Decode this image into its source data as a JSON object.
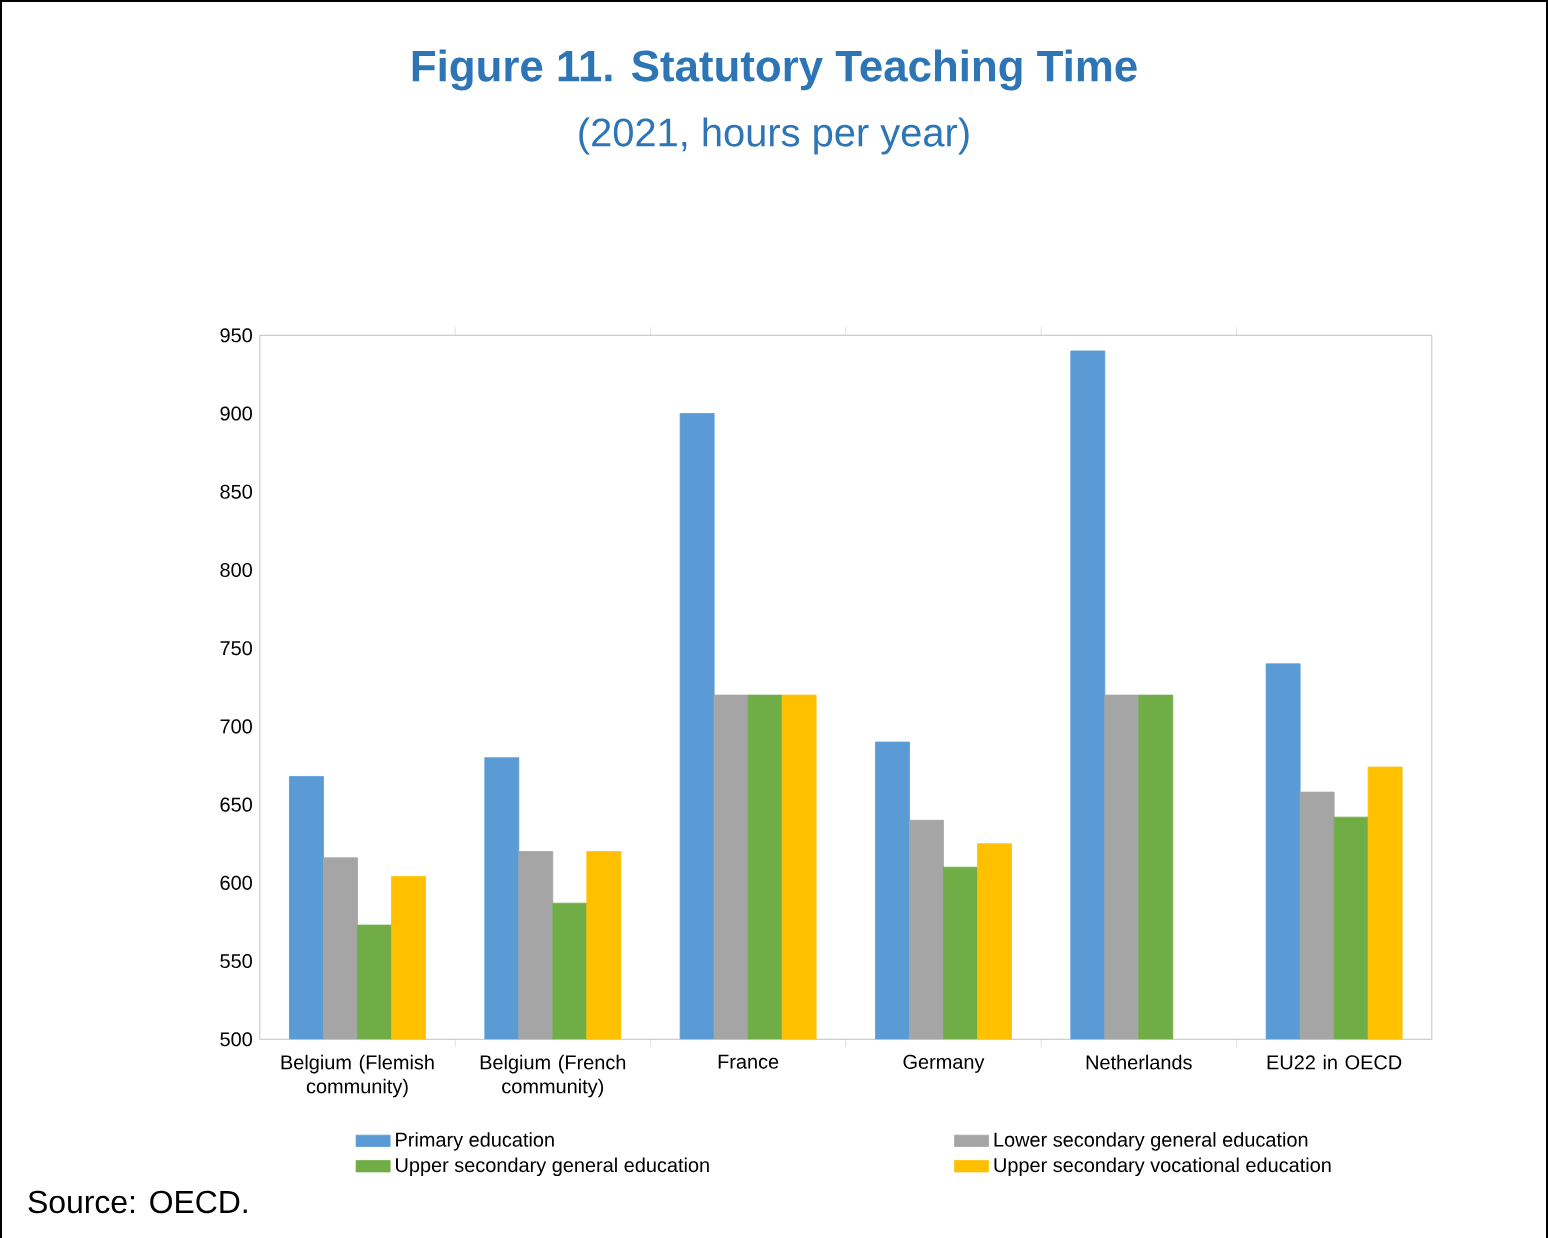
{
  "chart_data": {
    "type": "bar",
    "title": "Figure 11. Statutory Teaching Time",
    "subtitle": "(2021, hours per year)",
    "categories": [
      "Belgium (Flemish community)",
      "Belgium (French community)",
      "France",
      "Germany",
      "Netherlands",
      "EU22 in OECD"
    ],
    "series": [
      {
        "name": "Primary education",
        "color": "#5b9bd5",
        "values": [
          668,
          680,
          900,
          690,
          940,
          740
        ]
      },
      {
        "name": "Lower secondary general education",
        "color": "#a5a5a5",
        "values": [
          616,
          620,
          720,
          640,
          720,
          658
        ]
      },
      {
        "name": "Upper secondary general education",
        "color": "#70ad47",
        "values": [
          573,
          587,
          720,
          610,
          720,
          642
        ]
      },
      {
        "name": "Upper secondary vocational education",
        "color": "#ffc000",
        "values": [
          604,
          620,
          720,
          625,
          null,
          674
        ]
      }
    ],
    "ylim": [
      500,
      950
    ],
    "yticks": [
      500,
      550,
      600,
      650,
      700,
      750,
      800,
      850,
      900,
      950
    ],
    "grid": false,
    "legend": "bottom",
    "annotations": [
      "Source: OECD."
    ]
  }
}
